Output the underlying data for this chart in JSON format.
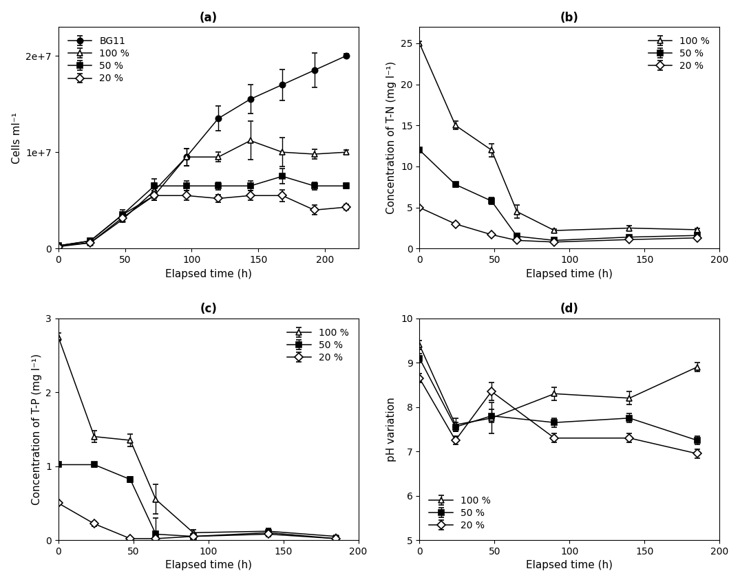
{
  "panel_a": {
    "title": "(a)",
    "xlabel": "Elapsed time (h)",
    "ylabel": "Cells ml⁻¹",
    "xlim": [
      0,
      225
    ],
    "ylim": [
      0,
      23000000.0
    ],
    "xticks": [
      0,
      50,
      100,
      150,
      200
    ],
    "yticks": [
      0,
      10000000.0,
      20000000.0
    ],
    "ytick_labels": [
      "0",
      "1e+7",
      "2e+7"
    ],
    "series": {
      "BG11": {
        "x": [
          0,
          24,
          48,
          72,
          96,
          120,
          144,
          168,
          192,
          216
        ],
        "y": [
          300000.0,
          800000.0,
          3500000.0,
          5500000.0,
          9500000.0,
          13500000.0,
          15500000.0,
          17000000.0,
          18500000.0,
          20000000.0
        ],
        "yerr": [
          100000.0,
          200000.0,
          300000.0,
          500000.0,
          900000.0,
          1300000.0,
          1500000.0,
          1600000.0,
          1800000.0,
          200000.0
        ],
        "marker": "o",
        "fillstyle": "full",
        "label": "BG11"
      },
      "100pct": {
        "x": [
          0,
          24,
          48,
          72,
          96,
          120,
          144,
          168,
          192,
          216
        ],
        "y": [
          300000.0,
          600000.0,
          3000000.0,
          6000000.0,
          9500000.0,
          9500000.0,
          11200000.0,
          10000000.0,
          9800000.0,
          10000000.0
        ],
        "yerr": [
          100000.0,
          100000.0,
          200000.0,
          800000.0,
          900000.0,
          500000.0,
          2000000.0,
          1500000.0,
          500000.0,
          200000.0
        ],
        "marker": "^",
        "fillstyle": "none",
        "label": "100 %"
      },
      "50pct": {
        "x": [
          0,
          24,
          48,
          72,
          96,
          120,
          144,
          168,
          192,
          216
        ],
        "y": [
          300000.0,
          800000.0,
          3500000.0,
          6500000.0,
          6500000.0,
          6500000.0,
          6500000.0,
          7500000.0,
          6500000.0,
          6500000.0
        ],
        "yerr": [
          100000.0,
          200000.0,
          500000.0,
          700000.0,
          500000.0,
          400000.0,
          500000.0,
          800000.0,
          400000.0,
          300000.0
        ],
        "marker": "s",
        "fillstyle": "full",
        "label": "50 %"
      },
      "20pct": {
        "x": [
          0,
          24,
          48,
          72,
          96,
          120,
          144,
          168,
          192,
          216
        ],
        "y": [
          200000.0,
          600000.0,
          3200000.0,
          5500000.0,
          5500000.0,
          5200000.0,
          5500000.0,
          5500000.0,
          4000000.0,
          4300000.0
        ],
        "yerr": [
          100000.0,
          100000.0,
          300000.0,
          500000.0,
          500000.0,
          400000.0,
          500000.0,
          600000.0,
          500000.0,
          300000.0
        ],
        "marker": "D",
        "fillstyle": "none",
        "label": "20 %"
      }
    }
  },
  "panel_b": {
    "title": "(b)",
    "xlabel": "Elapsed time (h)",
    "ylabel": "Concentration of T-N (mg l⁻¹)",
    "xlim": [
      0,
      200
    ],
    "ylim": [
      0,
      27
    ],
    "xticks": [
      0,
      50,
      100,
      150,
      200
    ],
    "yticks": [
      0,
      5,
      10,
      15,
      20,
      25
    ],
    "series": {
      "100pct": {
        "x": [
          0,
          24,
          48,
          65,
          90,
          140,
          185
        ],
        "y": [
          25.0,
          15.0,
          12.0,
          4.5,
          2.2,
          2.5,
          2.3
        ],
        "yerr": [
          0.2,
          0.5,
          0.8,
          0.8,
          0.2,
          0.3,
          0.2
        ],
        "marker": "^",
        "fillstyle": "none",
        "label": "100 %"
      },
      "50pct": {
        "x": [
          0,
          24,
          48,
          65,
          90,
          140,
          185
        ],
        "y": [
          12.0,
          7.8,
          5.8,
          1.5,
          1.0,
          1.4,
          1.6
        ],
        "yerr": [
          0.2,
          0.3,
          0.4,
          0.3,
          0.1,
          0.2,
          0.2
        ],
        "marker": "s",
        "fillstyle": "full",
        "label": "50 %"
      },
      "20pct": {
        "x": [
          0,
          24,
          48,
          65,
          90,
          140,
          185
        ],
        "y": [
          5.0,
          3.0,
          1.7,
          1.0,
          0.8,
          1.1,
          1.3
        ],
        "yerr": [
          0.1,
          0.2,
          0.2,
          0.15,
          0.1,
          0.15,
          0.15
        ],
        "marker": "D",
        "fillstyle": "none",
        "label": "20 %"
      }
    }
  },
  "panel_c": {
    "title": "(c)",
    "xlabel": "Elapsed time (h)",
    "ylabel": "Concentration of T-P (mg l⁻¹)",
    "xlim": [
      0,
      200
    ],
    "ylim": [
      0,
      3.0
    ],
    "xticks": [
      0,
      50,
      100,
      150,
      200
    ],
    "yticks": [
      0,
      1,
      2,
      3
    ],
    "series": {
      "100pct": {
        "x": [
          0,
          24,
          48,
          65,
          90,
          140,
          185
        ],
        "y": [
          2.75,
          1.4,
          1.35,
          0.55,
          0.1,
          0.12,
          0.05
        ],
        "yerr": [
          0.05,
          0.08,
          0.08,
          0.2,
          0.04,
          0.04,
          0.02
        ],
        "marker": "^",
        "fillstyle": "none",
        "label": "100 %"
      },
      "50pct": {
        "x": [
          0,
          24,
          48,
          65,
          90,
          140,
          185
        ],
        "y": [
          1.02,
          1.02,
          0.82,
          0.08,
          0.05,
          0.1,
          0.02
        ],
        "yerr": [
          0.02,
          0.03,
          0.04,
          0.22,
          0.02,
          0.05,
          0.01
        ],
        "marker": "s",
        "fillstyle": "full",
        "label": "50 %"
      },
      "20pct": {
        "x": [
          0,
          24,
          48,
          65,
          90,
          140,
          185
        ],
        "y": [
          0.5,
          0.22,
          0.02,
          0.02,
          0.05,
          0.08,
          0.02
        ],
        "yerr": [
          0.02,
          0.03,
          0.01,
          0.01,
          0.02,
          0.03,
          0.01
        ],
        "marker": "D",
        "fillstyle": "none",
        "label": "20 %"
      }
    }
  },
  "panel_d": {
    "title": "(d)",
    "xlabel": "Elapsed time (h)",
    "ylabel": "pH variation",
    "xlim": [
      0,
      200
    ],
    "ylim": [
      5,
      10
    ],
    "xticks": [
      0,
      50,
      100,
      150,
      200
    ],
    "yticks": [
      5,
      6,
      7,
      8,
      9,
      10
    ],
    "series": {
      "100pct": {
        "x": [
          0,
          24,
          48,
          90,
          140,
          185
        ],
        "y": [
          9.4,
          7.6,
          7.75,
          8.3,
          8.2,
          8.9
        ],
        "yerr": [
          0.1,
          0.15,
          0.35,
          0.15,
          0.15,
          0.1
        ],
        "marker": "^",
        "fillstyle": "none",
        "label": "100 %"
      },
      "50pct": {
        "x": [
          0,
          24,
          48,
          90,
          140,
          185
        ],
        "y": [
          9.1,
          7.55,
          7.8,
          7.65,
          7.75,
          7.25
        ],
        "yerr": [
          0.1,
          0.1,
          0.15,
          0.1,
          0.1,
          0.1
        ],
        "marker": "s",
        "fillstyle": "full",
        "label": "50 %"
      },
      "20pct": {
        "x": [
          0,
          24,
          48,
          90,
          140,
          185
        ],
        "y": [
          8.65,
          7.25,
          8.35,
          7.3,
          7.3,
          6.95
        ],
        "yerr": [
          0.1,
          0.1,
          0.2,
          0.1,
          0.1,
          0.1
        ],
        "marker": "D",
        "fillstyle": "none",
        "label": "20 %"
      }
    }
  }
}
